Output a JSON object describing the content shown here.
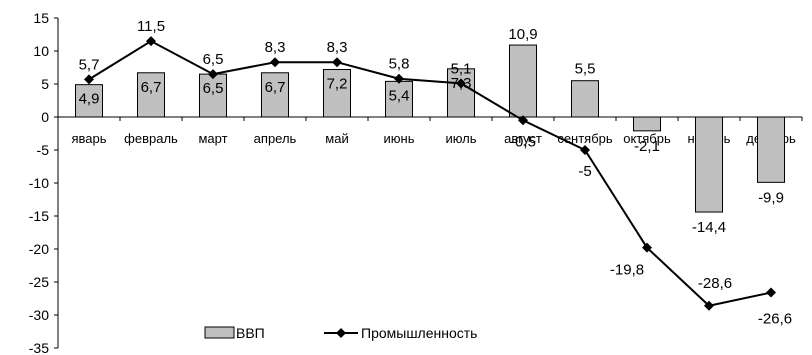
{
  "chart_data": {
    "type": "bar+line",
    "categories": [
      "январь",
      "февраль",
      "март",
      "апрель",
      "май",
      "июнь",
      "июль",
      "август",
      "сентябрь",
      "октябрь",
      "ноябрь",
      "декабрь"
    ],
    "category_labels": [
      "яварь",
      "февраль",
      "март",
      "апрель",
      "май",
      "июнь",
      "июль",
      "август",
      "сентябрь",
      "октябрь",
      "ноябрь",
      "декабрь"
    ],
    "series": [
      {
        "name": "ВВП",
        "type": "bar",
        "color": "#c0c0c0",
        "values": [
          4.9,
          6.7,
          6.5,
          6.7,
          7.2,
          5.4,
          7.3,
          10.9,
          5.5,
          -2.1,
          -14.4,
          -9.9
        ],
        "labels": [
          "4,9",
          "6,7",
          "6,5",
          "6,7",
          "7,2",
          "5,4",
          "7,3",
          "10,9",
          "5,5",
          "-2,1",
          "-14,4",
          "-9,9"
        ]
      },
      {
        "name": "Промышленность",
        "type": "line",
        "color": "#000000",
        "marker": "diamond",
        "values": [
          5.7,
          11.5,
          6.5,
          8.3,
          8.3,
          5.8,
          5.1,
          -0.5,
          -5,
          -19.8,
          -28.6,
          -26.6
        ],
        "labels": [
          "5,7",
          "11,5",
          "6,5",
          "8,3",
          "8,3",
          "5,8",
          "5,1",
          "-0,5",
          "-5",
          "-19,8",
          "-28,6",
          "-26,6"
        ]
      }
    ],
    "ylim": [
      -35,
      15
    ],
    "yticks": [
      15,
      10,
      5,
      0,
      -5,
      -10,
      -15,
      -20,
      -25,
      -30,
      -35
    ],
    "ytick_labels": [
      "15",
      "10",
      "5",
      "0",
      "-5",
      "-10",
      "-15",
      "-20",
      "-25",
      "-30",
      "-35"
    ],
    "grid": false,
    "legend": "bottom-center",
    "title": "",
    "xlabel": "",
    "ylabel": ""
  }
}
